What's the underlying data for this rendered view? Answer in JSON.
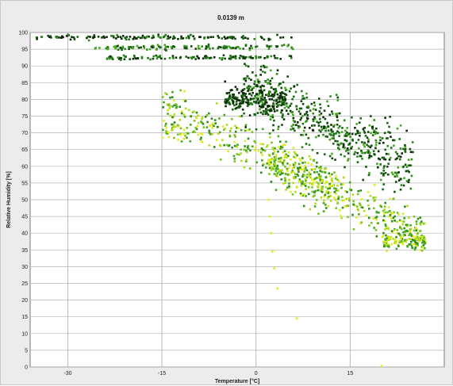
{
  "window": {
    "title": "0.0139 m"
  },
  "chart_data": {
    "type": "scatter",
    "title": "0.0139 m",
    "xlabel": "Temperature [°C]",
    "ylabel": "Relative Humidity [%]",
    "xlim": [
      -36,
      30
    ],
    "ylim": [
      0,
      100
    ],
    "x_ticks": [
      -30,
      -15,
      0,
      15
    ],
    "x_tick_labels": [
      "-30",
      "-15",
      "0",
      "15"
    ],
    "y_ticks": [
      0,
      5,
      10,
      15,
      20,
      25,
      30,
      35,
      40,
      45,
      50,
      55,
      60,
      65,
      70,
      75,
      80,
      85,
      90,
      95,
      100
    ],
    "y_tick_labels": [
      "0",
      "5",
      "10",
      "15",
      "20",
      "25",
      "30",
      "35",
      "40",
      "45",
      "50",
      "55",
      "60",
      "65",
      "70",
      "75",
      "80",
      "85",
      "90",
      "95",
      "100"
    ],
    "grid": true,
    "legend": "none",
    "colors": {
      "plot_background": "#ffffff",
      "window_background": "#ececec",
      "grid": "#b4b4b4",
      "point_palette": [
        "#0b2a06",
        "#0f4a0a",
        "#176b10",
        "#2c8c18",
        "#45a81f",
        "#78c422",
        "#b0dc1a",
        "#e2ec1c"
      ]
    },
    "point_groups": [
      {
        "name": "top band",
        "x_range": [
          -35,
          6
        ],
        "y_center": 98.5,
        "y_spread": 1.0,
        "count": 140,
        "palette": [
          0,
          0,
          1,
          2,
          3
        ]
      },
      {
        "name": "second band",
        "x_range": [
          -26,
          6
        ],
        "y_center": 95.5,
        "y_spread": 1.2,
        "count": 120,
        "palette": [
          1,
          2,
          3,
          4
        ]
      },
      {
        "name": "third band",
        "x_range": [
          -24,
          6
        ],
        "y_center": 92.5,
        "y_spread": 1.0,
        "count": 110,
        "palette": [
          0,
          1,
          2,
          3
        ]
      },
      {
        "name": "cold-wet cluster",
        "x_range": [
          -5,
          5
        ],
        "y_center": 80.0,
        "y_spread": 6.0,
        "count": 200,
        "palette": [
          0,
          0,
          0,
          1,
          2
        ]
      },
      {
        "name": "main warm cloud",
        "x_range": [
          -2,
          25
        ],
        "y_center": 72.0,
        "y_spread": 14.0,
        "count": 550,
        "palette": [
          0,
          1,
          1,
          2,
          2,
          3,
          4
        ]
      },
      {
        "name": "lower warm cloud",
        "x_range": [
          2,
          27
        ],
        "y_center": 50.0,
        "y_spread": 10.0,
        "count": 420,
        "palette": [
          3,
          4,
          5,
          6,
          7
        ]
      },
      {
        "name": "mid cloud",
        "x_range": [
          -15,
          12
        ],
        "y_center": 66.0,
        "y_spread": 10.0,
        "count": 300,
        "palette": [
          3,
          4,
          5,
          6,
          7
        ]
      },
      {
        "name": "cold dry tail",
        "x_range": [
          -15,
          -8
        ],
        "y_center": 70.0,
        "y_spread": 4.0,
        "count": 40,
        "palette": [
          4,
          5,
          7
        ]
      },
      {
        "name": "far edge",
        "x_range": [
          20,
          27
        ],
        "y_center": 37.5,
        "y_spread": 3.0,
        "count": 90,
        "palette": [
          3,
          4,
          6,
          7
        ]
      }
    ],
    "isolated_points": [
      {
        "x": 2.0,
        "y": 50,
        "color": "#e2ec1c"
      },
      {
        "x": 2.2,
        "y": 45,
        "color": "#e2ec1c"
      },
      {
        "x": 2.4,
        "y": 40,
        "color": "#e2ec1c"
      },
      {
        "x": 2.6,
        "y": 34.5,
        "color": "#e2ec1c"
      },
      {
        "x": 2.9,
        "y": 29.5,
        "color": "#e2ec1c"
      },
      {
        "x": 3.4,
        "y": 23.5,
        "color": "#e2ec1c"
      },
      {
        "x": 6.5,
        "y": 14.5,
        "color": "#e2ec1c"
      },
      {
        "x": 20.0,
        "y": 0.3,
        "color": "#e2ec1c"
      }
    ]
  }
}
